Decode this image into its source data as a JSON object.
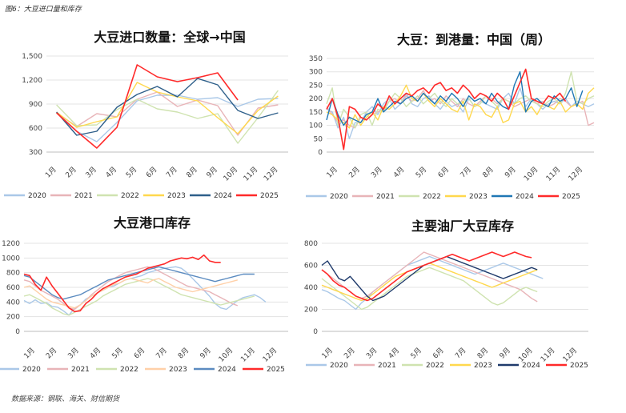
{
  "figure_label": "图6：大豆进口量和库存",
  "source": "数据来源：钢联、海关、财信期货",
  "chart_data": [
    {
      "type": "line",
      "title": "大豆进口数量：全球→中国",
      "x_ticks": [
        "1月",
        "2月",
        "3月",
        "4月",
        "5月",
        "6月",
        "7月",
        "8月",
        "9月",
        "10月",
        "11月",
        "12月"
      ],
      "ylim": [
        300,
        1500
      ],
      "y_ticks": [
        "300",
        "600",
        "900",
        "1,200",
        "1,500"
      ],
      "y_tick_values": [
        300,
        600,
        900,
        1200,
        1500
      ],
      "series": [
        {
          "name": "2020",
          "color": "#aac8e8",
          "values": [
            800,
            560,
            430,
            670,
            940,
            1010,
            1010,
            960,
            980,
            870,
            960,
            970
          ]
        },
        {
          "name": "2021",
          "color": "#e8b4b8",
          "values": [
            790,
            620,
            780,
            740,
            960,
            1050,
            870,
            950,
            880,
            510,
            850,
            890
          ]
        },
        {
          "name": "2022",
          "color": "#cfe3b0",
          "values": [
            890,
            630,
            640,
            830,
            960,
            840,
            800,
            720,
            780,
            410,
            730,
            1070
          ]
        },
        {
          "name": "2023",
          "color": "#ffd84d",
          "values": [
            800,
            610,
            680,
            740,
            1170,
            1050,
            990,
            940,
            730,
            530,
            820,
            1000
          ]
        },
        {
          "name": "2024",
          "color": "#2e5f8a",
          "values": [
            800,
            510,
            560,
            860,
            1020,
            1120,
            990,
            1220,
            1140,
            820,
            720,
            790
          ]
        },
        {
          "name": "2025",
          "color": "#ff2a2a",
          "values": [
            790,
            560,
            350,
            610,
            1390,
            1240,
            1180,
            1230,
            1290,
            950,
            null,
            null
          ]
        }
      ]
    },
    {
      "type": "line",
      "title": "大豆：到港量：中国（周）",
      "x_ticks": [
        "1月",
        "2月",
        "3月",
        "4月",
        "5月",
        "6月",
        "7月",
        "8月",
        "9月",
        "10月",
        "11月",
        "12月"
      ],
      "ylim": [
        0,
        350
      ],
      "y_ticks": [
        "0",
        "50",
        "100",
        "150",
        "200",
        "250",
        "300",
        "350"
      ],
      "y_tick_values": [
        0,
        50,
        100,
        150,
        200,
        250,
        300,
        350
      ],
      "series": [
        {
          "name": "2020",
          "color": "#aac8e8",
          "values": [
            160,
            150,
            90,
            130,
            50,
            110,
            110,
            150,
            170,
            140,
            180,
            200,
            160,
            180,
            220,
            180,
            170,
            200,
            210,
            180,
            160,
            190,
            170,
            180,
            150,
            200,
            170,
            190,
            180,
            170,
            160,
            200,
            220,
            180,
            240,
            170,
            200,
            180,
            160,
            180,
            190,
            180,
            200,
            170,
            190,
            180,
            170,
            180
          ]
        },
        {
          "name": "2021",
          "color": "#e8b4b8",
          "values": [
            170,
            140,
            110,
            120,
            100,
            90,
            130,
            120,
            140,
            150,
            160,
            190,
            200,
            180,
            210,
            190,
            200,
            230,
            190,
            200,
            180,
            210,
            190,
            170,
            200,
            180,
            170,
            190,
            210,
            200,
            180,
            200,
            190,
            170,
            180,
            190,
            200,
            180,
            190,
            170,
            180,
            200,
            190,
            170,
            180,
            190,
            100,
            110
          ]
        },
        {
          "name": "2022",
          "color": "#cfe3b0",
          "values": [
            180,
            240,
            100,
            160,
            130,
            90,
            140,
            150,
            100,
            160,
            150,
            190,
            220,
            200,
            170,
            190,
            210,
            180,
            200,
            220,
            190,
            170,
            200,
            180,
            190,
            200,
            170,
            180,
            210,
            190,
            170,
            200,
            190,
            180,
            200,
            210,
            190,
            180,
            170,
            190,
            200,
            180,
            220,
            300,
            190,
            180,
            200,
            210
          ]
        },
        {
          "name": "2023",
          "color": "#ffd84d",
          "values": [
            150,
            140,
            120,
            110,
            90,
            140,
            100,
            130,
            150,
            120,
            170,
            160,
            180,
            210,
            250,
            200,
            190,
            220,
            190,
            170,
            200,
            180,
            160,
            150,
            190,
            120,
            180,
            170,
            140,
            130,
            170,
            110,
            120,
            180,
            190,
            150,
            170,
            140,
            180,
            170,
            160,
            190,
            150,
            170,
            180,
            160,
            220,
            240
          ]
        },
        {
          "name": "2024",
          "color": "#1f77b4",
          "values": [
            120,
            200,
            140,
            100,
            130,
            120,
            110,
            140,
            150,
            200,
            150,
            170,
            190,
            180,
            200,
            210,
            190,
            220,
            200,
            180,
            210,
            190,
            220,
            200,
            170,
            210,
            190,
            200,
            180,
            220,
            190,
            170,
            160,
            250,
            300,
            150,
            190,
            200,
            180,
            170,
            210,
            190,
            200,
            240,
            170,
            230
          ]
        },
        {
          "name": "2025",
          "color": "#ff2a2a",
          "values": [
            160,
            200,
            130,
            10,
            170,
            160,
            130,
            120,
            140,
            180,
            160,
            210,
            180,
            200,
            220,
            210,
            230,
            240,
            220,
            250,
            260,
            230,
            240,
            220,
            250,
            230,
            200,
            220,
            210,
            190,
            220,
            200,
            160,
            210,
            260,
            310,
            200,
            190,
            180,
            210,
            200,
            220,
            190
          ]
        }
      ]
    },
    {
      "type": "line",
      "title": "大豆港口库存",
      "x_ticks": [
        "1月",
        "2月",
        "3月",
        "4月",
        "5月",
        "6月",
        "7月",
        "8月",
        "9月",
        "10月",
        "11月",
        "12月"
      ],
      "ylim": [
        0,
        1200
      ],
      "y_ticks": [
        "0",
        "200",
        "400",
        "600",
        "800",
        "1000",
        "1200"
      ],
      "y_tick_values": [
        0,
        200,
        400,
        600,
        800,
        1000,
        1200
      ],
      "series": [
        {
          "name": "2020",
          "color": "#aac8e8",
          "values": [
            420,
            380,
            430,
            380,
            390,
            340,
            330,
            280,
            220,
            320,
            360,
            440,
            480,
            520,
            560,
            600,
            620,
            660,
            700,
            720,
            740,
            760,
            800,
            820,
            840,
            860,
            870,
            880,
            860,
            800,
            720,
            640,
            560,
            480,
            380,
            320,
            300,
            360,
            420,
            460,
            480,
            500,
            460,
            400
          ]
        },
        {
          "name": "2021",
          "color": "#e8b4b8",
          "values": [
            700,
            680,
            620,
            560,
            520,
            480,
            440,
            380,
            320,
            300,
            360,
            420,
            500,
            560,
            620,
            680,
            720,
            760,
            800,
            820,
            840,
            860,
            880,
            860,
            820,
            780,
            740,
            700,
            660,
            620,
            600,
            580,
            560,
            540,
            500,
            460,
            420,
            380,
            350
          ]
        },
        {
          "name": "2022",
          "color": "#cfe3b0",
          "values": [
            480,
            500,
            460,
            420,
            380,
            320,
            280,
            240,
            220,
            260,
            300,
            340,
            380,
            420,
            480,
            520,
            560,
            600,
            640,
            660,
            680,
            700,
            720,
            700,
            660,
            620,
            580,
            540,
            500,
            480,
            460,
            440,
            420,
            400,
            380,
            360,
            380,
            400,
            420,
            440,
            460,
            480
          ]
        },
        {
          "name": "2023",
          "color": "#ffd0a8",
          "values": [
            600,
            620,
            560,
            500,
            440,
            400,
            380,
            360,
            340,
            320,
            360,
            420,
            480,
            520,
            560,
            600,
            640,
            660,
            700,
            720,
            700,
            680,
            660,
            700,
            720,
            680,
            640,
            600,
            580,
            560,
            540,
            560,
            580,
            600,
            620,
            640,
            660,
            680,
            700
          ]
        },
        {
          "name": "2024",
          "color": "#5b8bc0",
          "values": [
            760,
            740,
            680,
            620,
            560,
            500,
            460,
            440,
            460,
            480,
            500,
            540,
            580,
            620,
            660,
            700,
            720,
            740,
            760,
            780,
            800,
            820,
            840,
            860,
            880,
            860,
            840,
            820,
            800,
            780,
            760,
            740,
            720,
            700,
            680,
            700,
            720,
            740,
            760,
            780,
            780,
            780
          ]
        },
        {
          "name": "2025",
          "color": "#ff2a2a",
          "values": [
            780,
            760,
            640,
            560,
            740,
            620,
            520,
            420,
            320,
            270,
            280,
            380,
            440,
            520,
            580,
            620,
            660,
            700,
            740,
            760,
            780,
            820,
            860,
            880,
            900,
            920,
            960,
            980,
            1000,
            990,
            1010,
            980,
            1040,
            960,
            940,
            940
          ]
        }
      ]
    },
    {
      "type": "line",
      "title": "主要油厂大豆库存",
      "x_ticks": [
        "1月",
        "2月",
        "3月",
        "4月",
        "5月",
        "6月",
        "7月",
        "8月",
        "9月",
        "10月",
        "11月",
        "12月"
      ],
      "ylim": [
        0,
        800
      ],
      "y_ticks": [
        "0",
        "200",
        "400",
        "600",
        "800"
      ],
      "y_tick_values": [
        0,
        200,
        400,
        600,
        800
      ],
      "series": [
        {
          "name": "2020",
          "color": "#aac8e8",
          "values": [
            380,
            360,
            330,
            300,
            280,
            240,
            200,
            260,
            300,
            360,
            400,
            440,
            480,
            520,
            560,
            600,
            620,
            640,
            660,
            680,
            660,
            640,
            620,
            600,
            580,
            560,
            540,
            520,
            540,
            560,
            580,
            600,
            620,
            600,
            580,
            560,
            540,
            520,
            500,
            480
          ]
        },
        {
          "name": "2021",
          "color": "#e8b4b8",
          "values": [
            560,
            520,
            480,
            440,
            400,
            360,
            320,
            300,
            320,
            360,
            400,
            440,
            480,
            520,
            560,
            600,
            640,
            680,
            720,
            700,
            680,
            660,
            640,
            620,
            600,
            580,
            560,
            540,
            520,
            500,
            480,
            460,
            440,
            420,
            400,
            380,
            340,
            300,
            270
          ]
        },
        {
          "name": "2022",
          "color": "#cfe3b0",
          "values": [
            480,
            440,
            400,
            360,
            320,
            280,
            240,
            200,
            220,
            260,
            300,
            340,
            380,
            420,
            460,
            500,
            520,
            540,
            560,
            580,
            560,
            540,
            520,
            500,
            480,
            460,
            420,
            380,
            340,
            300,
            260,
            240,
            260,
            300,
            340,
            380,
            400,
            380,
            360
          ]
        },
        {
          "name": "2023",
          "color": "#ffd84d",
          "values": [
            420,
            400,
            380,
            360,
            340,
            320,
            300,
            280,
            300,
            340,
            380,
            420,
            460,
            500,
            520,
            540,
            560,
            580,
            600,
            620,
            600,
            580,
            560,
            540,
            520,
            500,
            480,
            460,
            440,
            420,
            400,
            420,
            440,
            460,
            480,
            500,
            520,
            540,
            560
          ]
        },
        {
          "name": "2024",
          "color": "#1f3a6b",
          "values": [
            600,
            640,
            560,
            480,
            460,
            500,
            440,
            380,
            320,
            280,
            300,
            320,
            360,
            400,
            440,
            480,
            520,
            560,
            600,
            620,
            640,
            660,
            680,
            660,
            640,
            620,
            600,
            580,
            560,
            540,
            520,
            500,
            480,
            500,
            520,
            540,
            560,
            580,
            560
          ]
        },
        {
          "name": "2025",
          "color": "#ff2a2a",
          "values": [
            560,
            520,
            460,
            420,
            400,
            360,
            320,
            300,
            280,
            300,
            340,
            380,
            420,
            460,
            500,
            540,
            560,
            580,
            600,
            620,
            640,
            660,
            680,
            700,
            680,
            660,
            640,
            660,
            680,
            700,
            720,
            700,
            680,
            700,
            720,
            700,
            680,
            670
          ]
        }
      ]
    }
  ]
}
